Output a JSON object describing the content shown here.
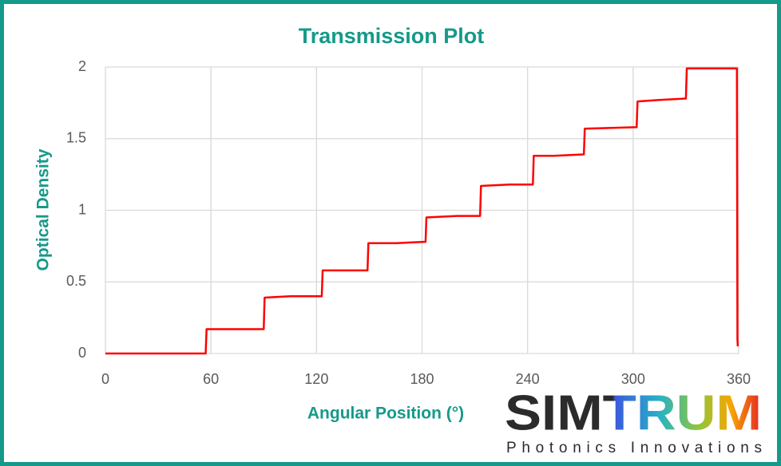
{
  "chart_data": {
    "type": "line",
    "title": "Transmission Plot",
    "x_label": "Angular Position (°)",
    "y_label": "Optical Density",
    "x": [
      0,
      57,
      57.5,
      90,
      90.5,
      105,
      123,
      123.5,
      149,
      149.5,
      165,
      182,
      182.5,
      200,
      213,
      213.5,
      230,
      243,
      243.5,
      255,
      272,
      272.5,
      302,
      302.5,
      315,
      330,
      330.5,
      359,
      359.3,
      359.5
    ],
    "values": [
      0,
      0,
      0.17,
      0.17,
      0.39,
      0.4,
      0.4,
      0.58,
      0.58,
      0.77,
      0.77,
      0.78,
      0.95,
      0.96,
      0.96,
      1.17,
      1.18,
      1.18,
      1.38,
      1.38,
      1.39,
      1.57,
      1.58,
      1.76,
      1.77,
      1.78,
      1.99,
      1.99,
      0.1,
      0.05
    ],
    "color": "#ff0000",
    "xlim": [
      0,
      360
    ],
    "xticks": [
      0,
      60,
      120,
      180,
      240,
      300,
      360
    ],
    "ylim": [
      0,
      2
    ],
    "yticks": [
      0,
      0.5,
      1,
      1.5,
      2
    ],
    "grid": true
  },
  "logo": {
    "name": "SIMTRUM",
    "tagline": "Photonics Innovations"
  }
}
